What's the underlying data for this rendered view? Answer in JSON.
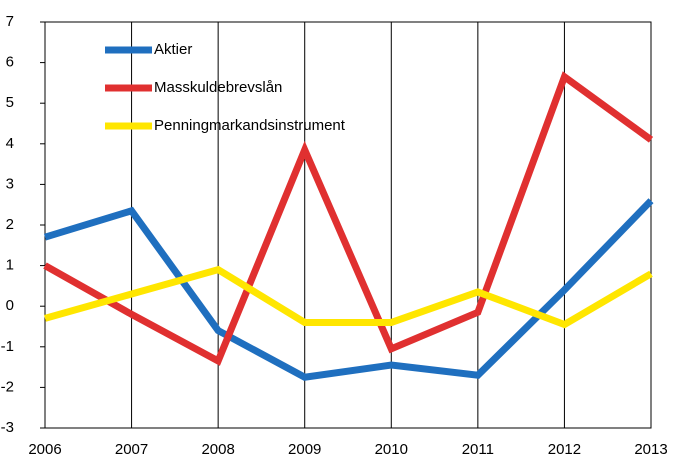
{
  "chart_data": {
    "type": "line",
    "categories": [
      "2006",
      "2007",
      "2008",
      "2009",
      "2010",
      "2011",
      "2012",
      "2013"
    ],
    "series": [
      {
        "name": "Aktier",
        "color": "#1f6fbf",
        "values": [
          1.7,
          2.35,
          -0.6,
          -1.75,
          -1.45,
          -1.7,
          0.4,
          2.6
        ]
      },
      {
        "name": "Masskuldebrevslån",
        "color": "#e03030",
        "values": [
          1.0,
          -0.2,
          -1.35,
          3.85,
          -1.05,
          -0.15,
          5.65,
          4.1
        ]
      },
      {
        "name": "Penningmarkandsinstrument",
        "color": "#ffe600",
        "values": [
          -0.3,
          0.3,
          0.9,
          -0.4,
          -0.4,
          0.35,
          -0.45,
          0.8
        ]
      }
    ],
    "ylim": [
      -3,
      7
    ],
    "yticks": [
      -3,
      -2,
      -1,
      0,
      1,
      2,
      3,
      4,
      5,
      6,
      7
    ],
    "grid": "x",
    "legend": "upper left"
  }
}
